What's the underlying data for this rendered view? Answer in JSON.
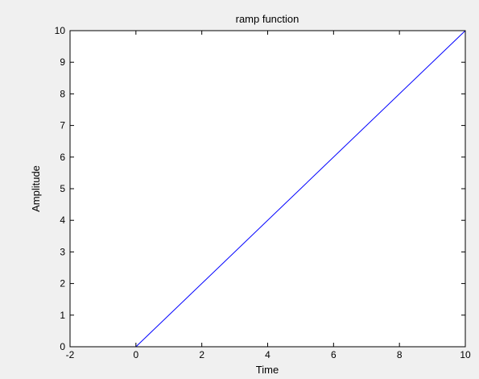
{
  "chart_data": {
    "type": "line",
    "title": "ramp function",
    "xlabel": "Time",
    "ylabel": "Amplitude",
    "xlim": [
      -2,
      10
    ],
    "ylim": [
      0,
      10
    ],
    "xticks": [
      -2,
      0,
      2,
      4,
      6,
      8,
      10
    ],
    "yticks": [
      0,
      1,
      2,
      3,
      4,
      5,
      6,
      7,
      8,
      9,
      10
    ],
    "grid": false,
    "series": [
      {
        "color": "#0000ff",
        "x": [
          -2,
          0,
          10
        ],
        "y": [
          0,
          0,
          10
        ]
      }
    ]
  },
  "colors": {
    "figure_background": "#f0f0f0",
    "plot_background": "#ffffff",
    "axes": "#000000"
  }
}
